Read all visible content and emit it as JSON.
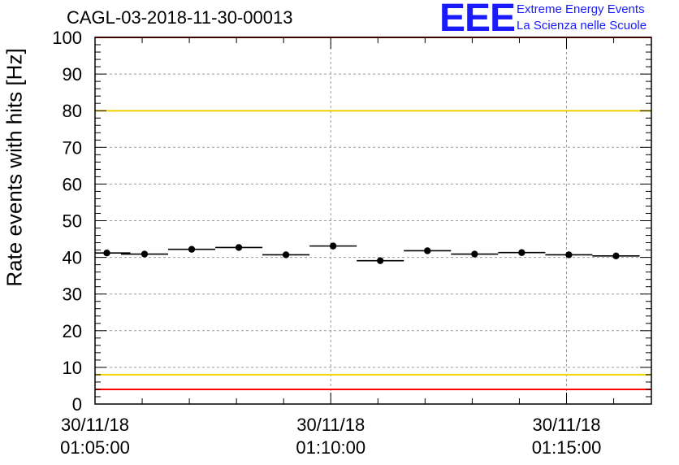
{
  "header": {
    "run_title": "CAGL-03-2018-11-30-00013",
    "logo_text": "EEE",
    "logo_line1": "Extreme Energy Events",
    "logo_line2": "La Scienza nelle Scuole",
    "brand_color": "#1a1aff"
  },
  "chart_data": {
    "type": "scatter",
    "title": "CAGL-03-2018-11-30-00013",
    "ylabel": "Rate events with hits [Hz]",
    "xlabel": "",
    "ylim": [
      0,
      100
    ],
    "y_ticks": [
      "0",
      "10",
      "20",
      "30",
      "40",
      "50",
      "60",
      "70",
      "80",
      "90",
      "100"
    ],
    "xlim_minutes": [
      0,
      11.8
    ],
    "x_ticks": [
      {
        "minute": 0,
        "date": "30/11/18",
        "time": "01:05:00"
      },
      {
        "minute": 5,
        "date": "30/11/18",
        "time": "01:10:00"
      },
      {
        "minute": 10,
        "date": "30/11/18",
        "time": "01:15:00"
      }
    ],
    "bin_width_minutes": 1,
    "series": [
      {
        "name": "Rate",
        "marker": "circle",
        "color": "#000000",
        "x_minutes": [
          0.25,
          1.05,
          2.05,
          3.05,
          4.05,
          5.05,
          6.05,
          7.05,
          8.05,
          9.05,
          10.05,
          11.05
        ],
        "values": [
          41.2,
          40.9,
          42.2,
          42.7,
          40.7,
          43.1,
          39.1,
          41.8,
          40.9,
          41.3,
          40.7,
          40.4
        ]
      }
    ],
    "reference_lines": [
      {
        "name": "upper-red",
        "value": 100,
        "color": "#ff0000"
      },
      {
        "name": "upper-yellow",
        "value": 80,
        "color": "#f2d200"
      },
      {
        "name": "lower-yellow",
        "value": 8,
        "color": "#f2d200"
      },
      {
        "name": "lower-red",
        "value": 4,
        "color": "#ff0000"
      }
    ],
    "grid": true
  }
}
